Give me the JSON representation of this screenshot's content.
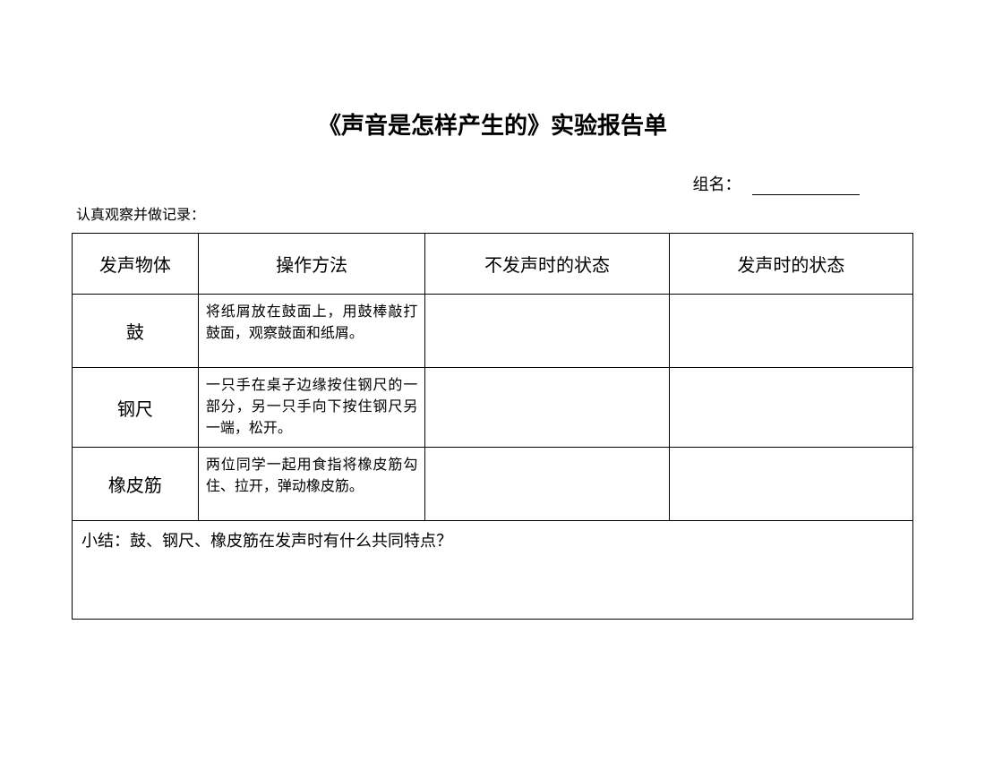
{
  "title": "《声音是怎样产生的》实验报告单",
  "group_label": "组名：",
  "instruction": "认真观察并做记录：",
  "table": {
    "headers": {
      "object": "发声物体",
      "method": "操作方法",
      "no_sound_state": "不发声时的状态",
      "sound_state": "发声时的状态"
    },
    "rows": [
      {
        "object": "鼓",
        "method": "将纸屑放在鼓面上，用鼓棒敲打鼓面，观察鼓面和纸屑。",
        "no_sound_state": "",
        "sound_state": ""
      },
      {
        "object": "钢尺",
        "method": "一只手在桌子边缘按住钢尺的一部分，另一只手向下按住钢尺另一端，松开。",
        "no_sound_state": "",
        "sound_state": ""
      },
      {
        "object": "橡皮筋",
        "method": "两位同学一起用食指将橡皮筋勾住、拉开，弹动橡皮筋。",
        "no_sound_state": "",
        "sound_state": ""
      }
    ],
    "summary": "小结：鼓、钢尺、橡皮筋在发声时有什么共同特点？"
  },
  "colors": {
    "background": "#ffffff",
    "text": "#000000",
    "border": "#000000"
  },
  "typography": {
    "title_fontsize": 26,
    "header_fontsize": 20,
    "body_fontsize": 16,
    "font_family": "SimSun"
  }
}
